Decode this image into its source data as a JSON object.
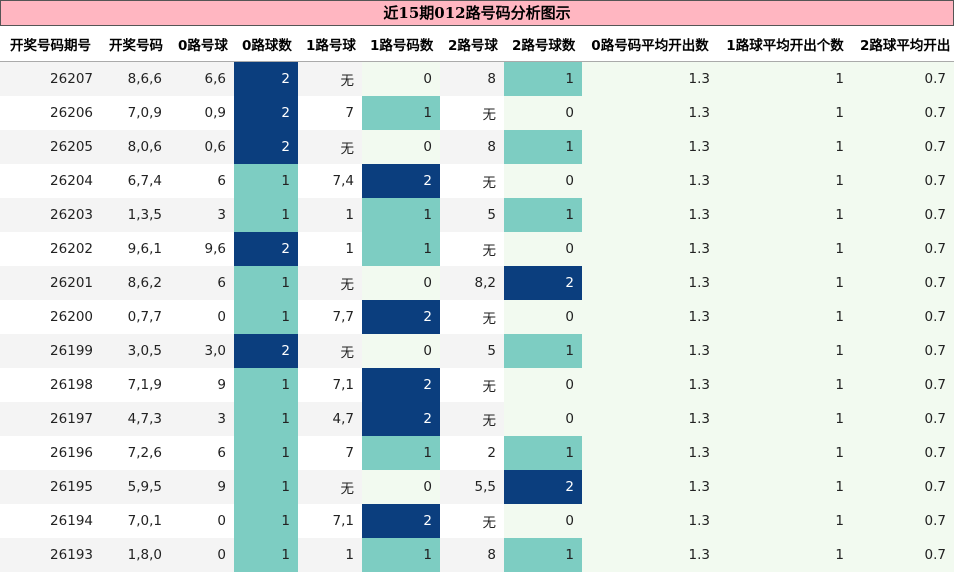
{
  "title": "近15期012路号码分析图示",
  "colors": {
    "title_bg": "#ffb6c1",
    "count_0": "#f2faf0",
    "count_1": "#7dcdc2",
    "count_2": "#0b3e7e"
  },
  "chart_data": {
    "type": "table",
    "columns": [
      "开奖号码期号",
      "开奖号码",
      "0路号球",
      "0路球数",
      "1路号球",
      "1路号码数",
      "2路号球",
      "2路号球数",
      "0路号码平均开出数",
      "1路球平均开出个数",
      "2路球平均开出"
    ],
    "rows": [
      [
        "26207",
        "8,6,6",
        "6,6",
        "2",
        "无",
        "0",
        "8",
        "1",
        "1.3",
        "1",
        "0.7"
      ],
      [
        "26206",
        "7,0,9",
        "0,9",
        "2",
        "7",
        "1",
        "无",
        "0",
        "1.3",
        "1",
        "0.7"
      ],
      [
        "26205",
        "8,0,6",
        "0,6",
        "2",
        "无",
        "0",
        "8",
        "1",
        "1.3",
        "1",
        "0.7"
      ],
      [
        "26204",
        "6,7,4",
        "6",
        "1",
        "7,4",
        "2",
        "无",
        "0",
        "1.3",
        "1",
        "0.7"
      ],
      [
        "26203",
        "1,3,5",
        "3",
        "1",
        "1",
        "1",
        "5",
        "1",
        "1.3",
        "1",
        "0.7"
      ],
      [
        "26202",
        "9,6,1",
        "9,6",
        "2",
        "1",
        "1",
        "无",
        "0",
        "1.3",
        "1",
        "0.7"
      ],
      [
        "26201",
        "8,6,2",
        "6",
        "1",
        "无",
        "0",
        "8,2",
        "2",
        "1.3",
        "1",
        "0.7"
      ],
      [
        "26200",
        "0,7,7",
        "0",
        "1",
        "7,7",
        "2",
        "无",
        "0",
        "1.3",
        "1",
        "0.7"
      ],
      [
        "26199",
        "3,0,5",
        "3,0",
        "2",
        "无",
        "0",
        "5",
        "1",
        "1.3",
        "1",
        "0.7"
      ],
      [
        "26198",
        "7,1,9",
        "9",
        "1",
        "7,1",
        "2",
        "无",
        "0",
        "1.3",
        "1",
        "0.7"
      ],
      [
        "26197",
        "4,7,3",
        "3",
        "1",
        "4,7",
        "2",
        "无",
        "0",
        "1.3",
        "1",
        "0.7"
      ],
      [
        "26196",
        "7,2,6",
        "6",
        "1",
        "7",
        "1",
        "2",
        "1",
        "1.3",
        "1",
        "0.7"
      ],
      [
        "26195",
        "5,9,5",
        "9",
        "1",
        "无",
        "0",
        "5,5",
        "2",
        "1.3",
        "1",
        "0.7"
      ],
      [
        "26194",
        "7,0,1",
        "0",
        "1",
        "7,1",
        "2",
        "无",
        "0",
        "1.3",
        "1",
        "0.7"
      ],
      [
        "26193",
        "1,8,0",
        "0",
        "1",
        "1",
        "1",
        "8",
        "1",
        "1.3",
        "1",
        "0.7"
      ]
    ]
  }
}
